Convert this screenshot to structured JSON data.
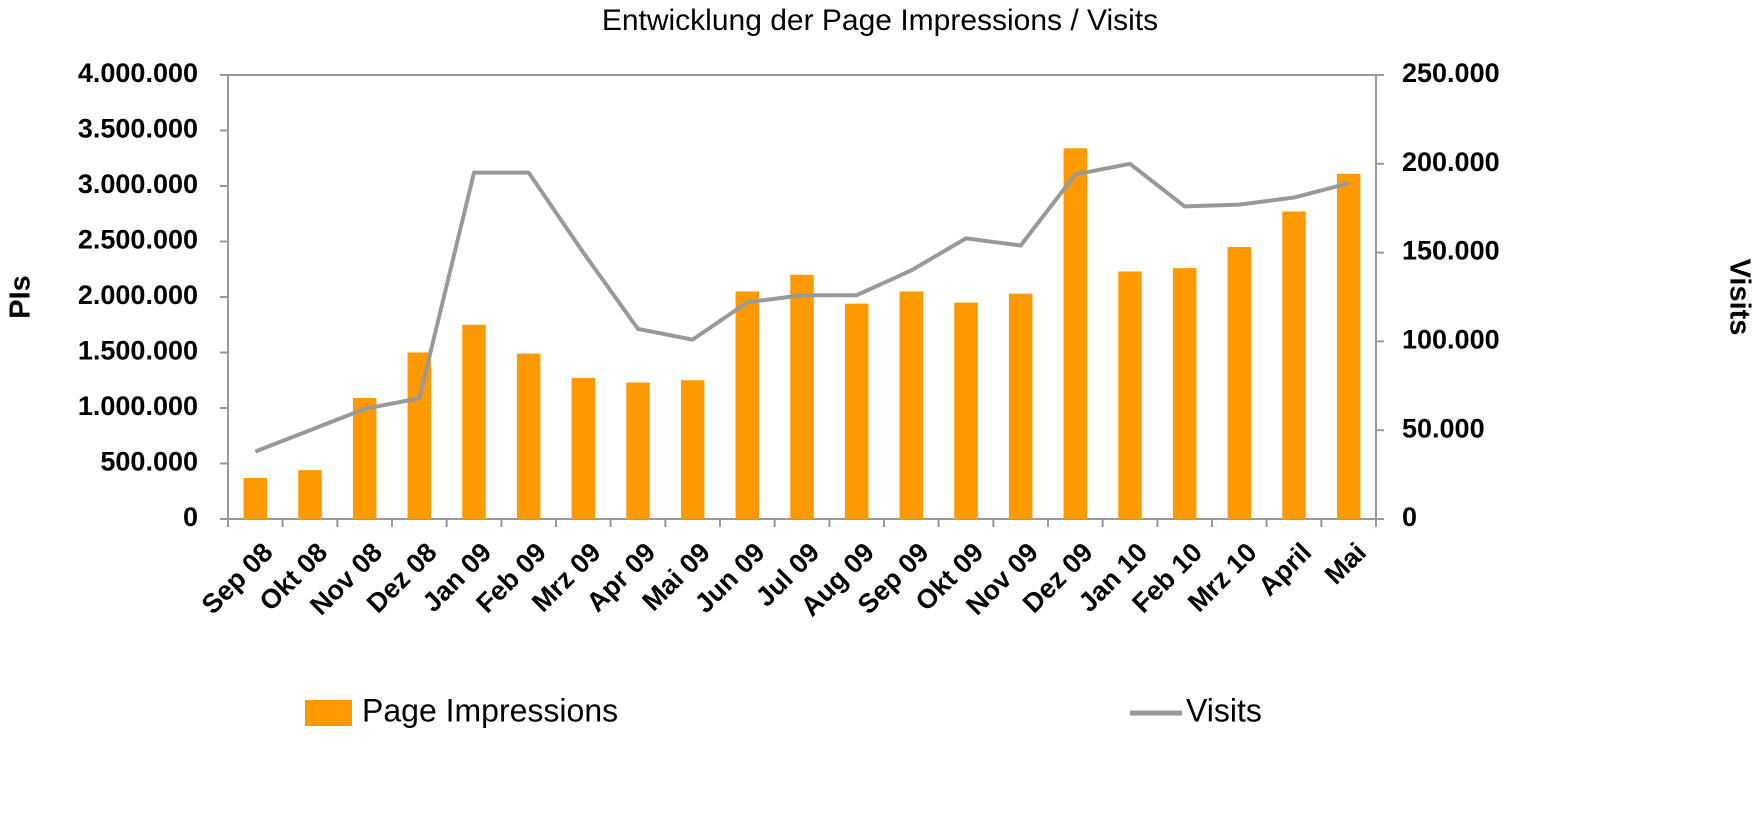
{
  "chart_data": {
    "type": "bar_line",
    "title": "Entwicklung der Page Impressions / Visits",
    "y_label": "PIs",
    "y2_label": "Visits",
    "categories": [
      "Sep 08",
      "Okt 08",
      "Nov 08",
      "Dez 08",
      "Jan 09",
      "Feb 09",
      "Mrz 09",
      "Apr 09",
      "Mai 09",
      "Jun 09",
      "Jul 09",
      "Aug 09",
      "Sep 09",
      "Okt 09",
      "Nov 09",
      "Dez 09",
      "Jan 10",
      "Feb 10",
      "Mrz 10",
      "April",
      "Mai"
    ],
    "series": [
      {
        "name": "Page Impressions",
        "type": "bar",
        "color": "#ff9900",
        "values": [
          370000,
          440000,
          1090000,
          1500000,
          1750000,
          1490000,
          1270000,
          1230000,
          1250000,
          2050000,
          2200000,
          1940000,
          2050000,
          1950000,
          2030000,
          3340000,
          2230000,
          2260000,
          2450000,
          2770000,
          3110000
        ]
      },
      {
        "name": "Visits",
        "type": "line",
        "axis": "y2",
        "color": "#999999",
        "values": [
          38000,
          50000,
          62000,
          68000,
          195000,
          195000,
          150000,
          107000,
          101000,
          122000,
          126000,
          126000,
          140000,
          158000,
          154000,
          194000,
          200000,
          176000,
          177000,
          181000,
          189000
        ]
      }
    ],
    "ylim": [
      0,
      4000000
    ],
    "yticks": [
      0,
      {
        "value": 500000,
        "label": "500.000"
      },
      {
        "value": 1000000,
        "label": "1.000.000"
      },
      {
        "value": 1500000,
        "label": "1.500.000"
      },
      {
        "value": 2000000,
        "label": "2.000.000"
      },
      {
        "value": 2500000,
        "label": "2.500.000"
      },
      {
        "value": 3000000,
        "label": "3.000.000"
      },
      {
        "value": 3500000,
        "label": "3.500.000"
      },
      {
        "value": 4000000,
        "label": "4.000.000"
      }
    ],
    "y2lim": [
      0,
      250000
    ],
    "y2ticks": [
      0,
      {
        "value": 50000,
        "label": "50.000"
      },
      {
        "value": 100000,
        "label": "100.000"
      },
      {
        "value": 150000,
        "label": "150.000"
      },
      {
        "value": 200000,
        "label": "200.000"
      },
      {
        "value": 250000,
        "label": "250.000"
      }
    ],
    "legend": "bottom"
  }
}
